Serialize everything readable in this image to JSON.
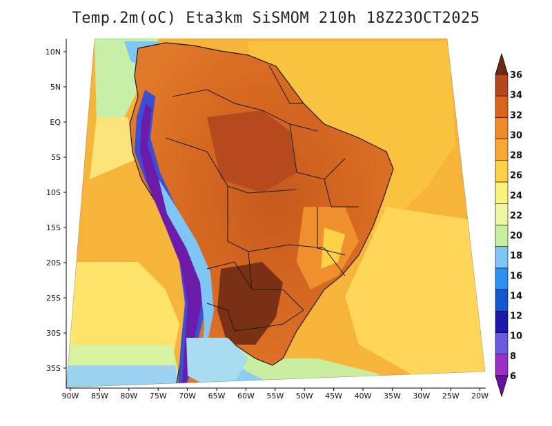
{
  "map": {
    "title": "Temp.2m(oC) Eta3km SiSMOM 210h 18Z23OCT2025",
    "variable": "Temp.2m",
    "units": "oC",
    "model": "Eta3km SiSMOM",
    "forecast_hour": "210h",
    "valid_time": "18Z23OCT2025",
    "lat_ticks": [
      "10N",
      "5N",
      "EQ",
      "5S",
      "10S",
      "15S",
      "20S",
      "25S",
      "30S",
      "35S"
    ],
    "lon_ticks": [
      "90W",
      "85W",
      "80W",
      "75W",
      "70W",
      "65W",
      "60W",
      "55W",
      "50W",
      "45W",
      "40W",
      "35W",
      "30W",
      "25W",
      "20W"
    ]
  },
  "colorbar": {
    "levels": [
      "6",
      "8",
      "10",
      "12",
      "14",
      "16",
      "18",
      "20",
      "22",
      "24",
      "26",
      "28",
      "30",
      "32",
      "34",
      "36"
    ],
    "colors": [
      "#6a0fa0",
      "#9b30c8",
      "#6a5ae0",
      "#1a1aa8",
      "#1458d0",
      "#2e8ff0",
      "#7ec6f5",
      "#c6f0a0",
      "#eef7a0",
      "#fff27a",
      "#ffd245",
      "#f7a830",
      "#ef8a2a",
      "#d9651c",
      "#b5471a",
      "#6e2b12"
    ]
  }
}
